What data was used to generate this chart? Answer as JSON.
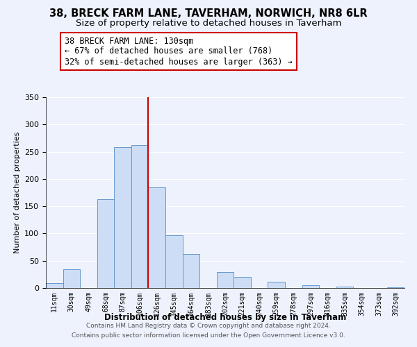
{
  "title": "38, BRECK FARM LANE, TAVERHAM, NORWICH, NR8 6LR",
  "subtitle": "Size of property relative to detached houses in Taverham",
  "xlabel": "Distribution of detached houses by size in Taverham",
  "ylabel": "Number of detached properties",
  "bar_labels": [
    "11sqm",
    "30sqm",
    "49sqm",
    "68sqm",
    "87sqm",
    "106sqm",
    "126sqm",
    "145sqm",
    "164sqm",
    "183sqm",
    "202sqm",
    "221sqm",
    "240sqm",
    "259sqm",
    "278sqm",
    "297sqm",
    "316sqm",
    "335sqm",
    "354sqm",
    "373sqm",
    "392sqm"
  ],
  "bar_values": [
    9,
    35,
    0,
    163,
    258,
    262,
    185,
    97,
    63,
    0,
    29,
    21,
    0,
    11,
    0,
    5,
    0,
    2,
    0,
    0,
    1
  ],
  "bar_color": "#ccddf5",
  "bar_edge_color": "#6699cc",
  "marker_index": 6,
  "marker_color": "#cc0000",
  "ylim": [
    0,
    350
  ],
  "yticks": [
    0,
    50,
    100,
    150,
    200,
    250,
    300,
    350
  ],
  "annotation_title": "38 BRECK FARM LANE: 130sqm",
  "annotation_line1": "← 67% of detached houses are smaller (768)",
  "annotation_line2": "32% of semi-detached houses are larger (363) →",
  "annotation_box_color": "#ffffff",
  "annotation_box_edge": "#cc0000",
  "footer1": "Contains HM Land Registry data © Crown copyright and database right 2024.",
  "footer2": "Contains public sector information licensed under the Open Government Licence v3.0.",
  "background_color": "#eef2fc",
  "title_fontsize": 10.5,
  "subtitle_fontsize": 9.5,
  "xlabel_fontsize": 8.5,
  "ylabel_fontsize": 8,
  "annotation_fontsize": 8.5,
  "footer_fontsize": 6.5
}
